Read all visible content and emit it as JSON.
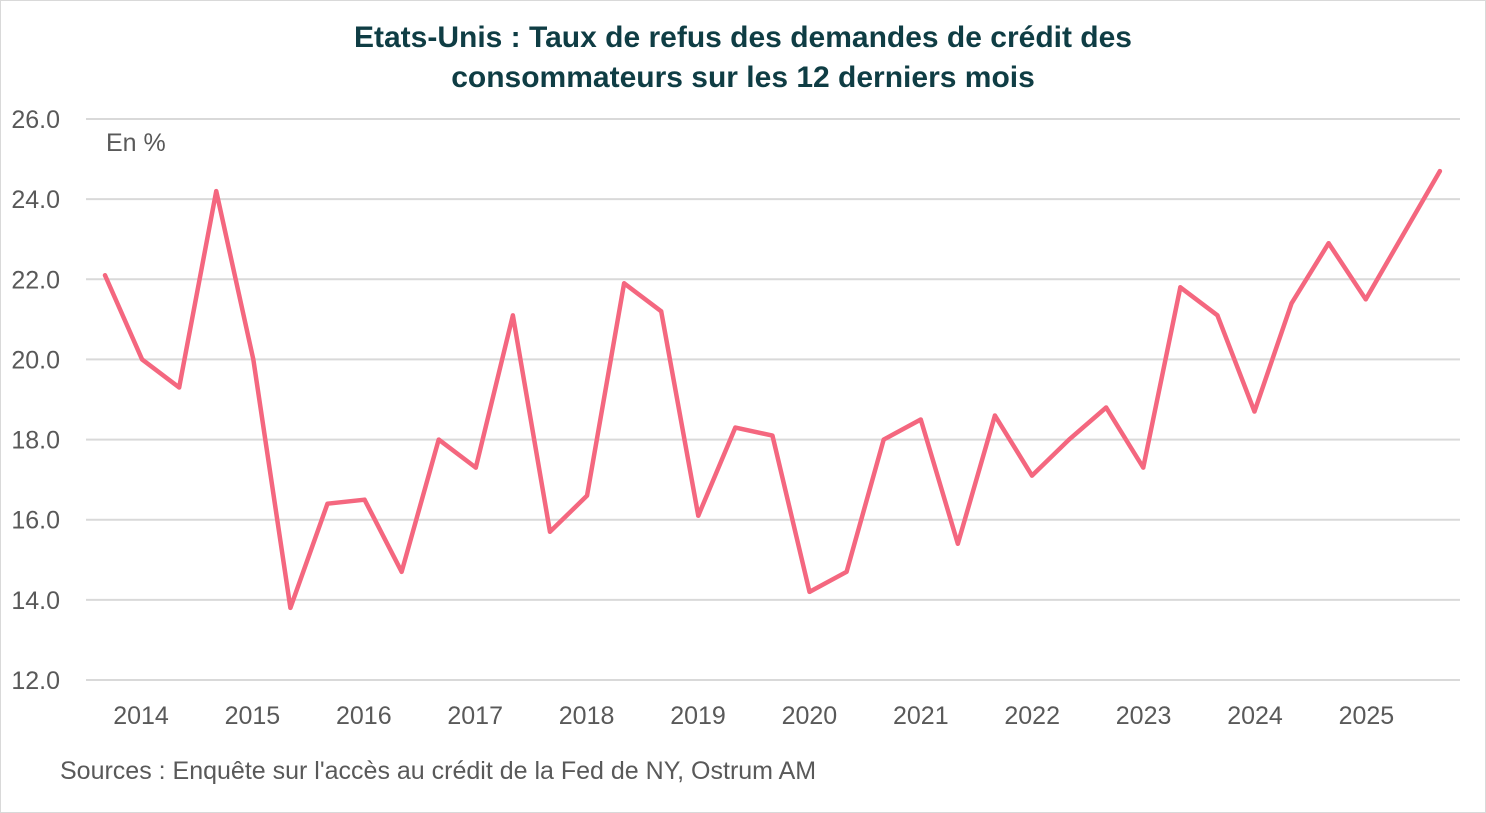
{
  "chart_data": {
    "type": "line",
    "title": [
      "Etats-Unis : Taux de refus des demandes de crédit des",
      "consommateurs sur les 12 derniers mois"
    ],
    "unit_label": "En %",
    "source": "Sources : Enquête sur l'accès au crédit de la Fed de NY, Ostrum AM",
    "ylim": [
      12,
      26
    ],
    "yticks": [
      "12.0",
      "14.0",
      "16.0",
      "18.0",
      "20.0",
      "22.0",
      "24.0",
      "26.0"
    ],
    "xtick_labels": [
      "2014",
      "2015",
      "2016",
      "2017",
      "2018",
      "2019",
      "2020",
      "2021",
      "2022",
      "2023",
      "2024",
      "2025"
    ],
    "grid": true,
    "line_color": "#f4677f",
    "values": [
      22.1,
      20.0,
      19.3,
      24.2,
      20.0,
      13.8,
      16.4,
      16.5,
      14.7,
      18.0,
      17.3,
      21.1,
      15.7,
      16.6,
      21.9,
      21.2,
      16.1,
      18.3,
      18.1,
      14.2,
      14.7,
      18.0,
      18.5,
      15.4,
      18.6,
      17.1,
      18.0,
      18.8,
      17.3,
      21.8,
      21.1,
      18.7,
      21.4,
      22.9,
      21.5,
      23.1,
      24.7
    ]
  }
}
